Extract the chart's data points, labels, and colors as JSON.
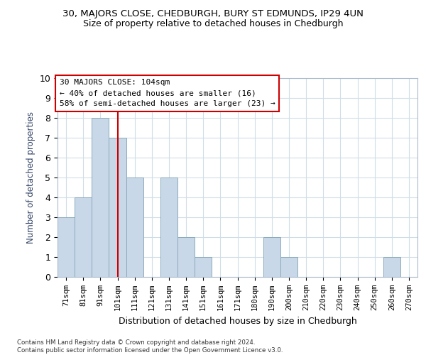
{
  "title_line1": "30, MAJORS CLOSE, CHEDBURGH, BURY ST EDMUNDS, IP29 4UN",
  "title_line2": "Size of property relative to detached houses in Chedburgh",
  "xlabel": "Distribution of detached houses by size in Chedburgh",
  "ylabel": "Number of detached properties",
  "bins": [
    "71sqm",
    "81sqm",
    "91sqm",
    "101sqm",
    "111sqm",
    "121sqm",
    "131sqm",
    "141sqm",
    "151sqm",
    "161sqm",
    "171sqm",
    "180sqm",
    "190sqm",
    "200sqm",
    "210sqm",
    "220sqm",
    "230sqm",
    "240sqm",
    "250sqm",
    "260sqm",
    "270sqm"
  ],
  "values": [
    3,
    4,
    8,
    7,
    5,
    0,
    5,
    2,
    1,
    0,
    0,
    0,
    2,
    1,
    0,
    0,
    0,
    0,
    0,
    1,
    0
  ],
  "bar_color": "#c8d8e8",
  "bar_edge_color": "#8aaabb",
  "vline_x": 3,
  "vline_color": "#cc0000",
  "ylim": [
    0,
    10
  ],
  "yticks": [
    0,
    1,
    2,
    3,
    4,
    5,
    6,
    7,
    8,
    9,
    10
  ],
  "annotation_text": "30 MAJORS CLOSE: 104sqm\n← 40% of detached houses are smaller (16)\n58% of semi-detached houses are larger (23) →",
  "annotation_box_color": "#cc0000",
  "footer_text": "Contains HM Land Registry data © Crown copyright and database right 2024.\nContains public sector information licensed under the Open Government Licence v3.0.",
  "background_color": "#ffffff",
  "grid_color": "#d0dde8"
}
